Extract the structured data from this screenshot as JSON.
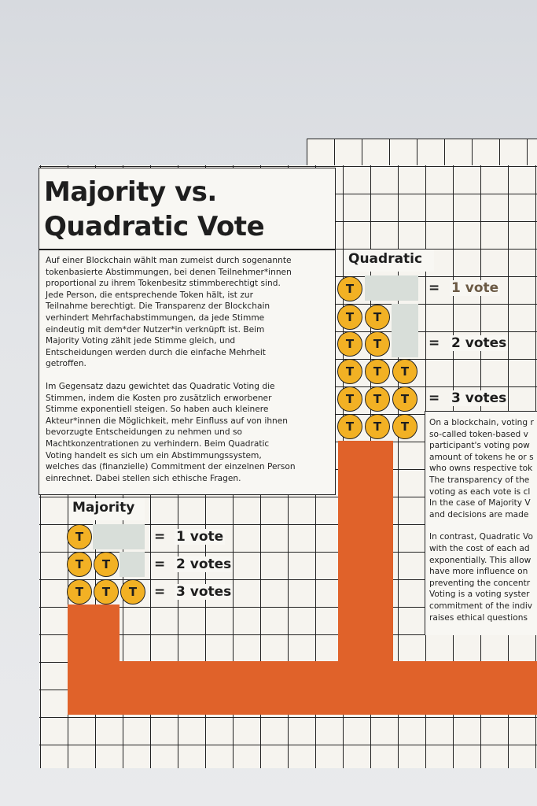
{
  "poster": {
    "title_line1": "Majority vs.",
    "title_line2": "Quadratic Vote",
    "german_paragraphs": [
      "Auf einer Blockchain wählt man zumeist durch sogenannte tokenbasierte Abstimmungen, bei denen Teilnehmer*innen proportional zu ihrem Tokenbesitz stimmberechtigt sind. Jede Person, die entsprechende Token hält, ist zur Teilnahme berechtigt. Die Transparenz der Blockchain verhindert Mehrfachabstimmungen, da jede Stimme eindeutig mit dem*der Nutzer*in verknüpft ist. Beim Majority Voting zählt jede Stimme gleich, und Entscheidungen werden durch die einfache Mehrheit getroffen.",
      "Im Gegensatz dazu gewichtet das Quadratic Voting die Stimmen, indem die Kosten pro zusätzlich erworbener Stimme exponentiell steigen. So haben auch kleinere Akteur*innen die Möglichkeit, mehr Einfluss auf von ihnen bevorzugte Entscheidungen zu nehmen und so Machtkonzentrationen zu verhindern. Beim Quadratic Voting handelt es sich um ein Abstimmungssystem, welches das (finanzielle) Commitment der einzelnen Person einrechnet. Dabei stellen sich ethische Fragen."
    ],
    "english_lines_1": [
      "On a blockchain, voting r",
      "so-called token-based v",
      "participant's voting pow",
      "amount of tokens he or s",
      "who owns respective tok",
      "The transparency of the",
      "voting as each vote is cl",
      "In the case of Majority V",
      "and decisions are made"
    ],
    "english_lines_2": [
      "In contrast, Quadratic Vo",
      "with the cost of each ad",
      "exponentially. This allow",
      "have more influence on",
      "preventing the concentr",
      "Voting is a voting syster",
      "commitment of the indiv",
      "raises ethical questions"
    ],
    "token_letter": "T",
    "equals": "=",
    "majority": {
      "label": "Majority",
      "rows": [
        {
          "tokens": 1,
          "result": "1 vote"
        },
        {
          "tokens": 2,
          "result": "2 votes"
        },
        {
          "tokens": 3,
          "result": "3 votes"
        }
      ]
    },
    "quadratic": {
      "label": "Quadratic",
      "rows": [
        {
          "tokens": 1,
          "result": "1 vote"
        },
        {
          "tokens": 4,
          "result": "2 votes"
        },
        {
          "tokens": 9,
          "result": "3 votes"
        }
      ]
    },
    "colors": {
      "token": "#f2b124",
      "orange_band": "#e0622a",
      "grid_line": "#222222",
      "paper": "#f6f4ef"
    }
  }
}
